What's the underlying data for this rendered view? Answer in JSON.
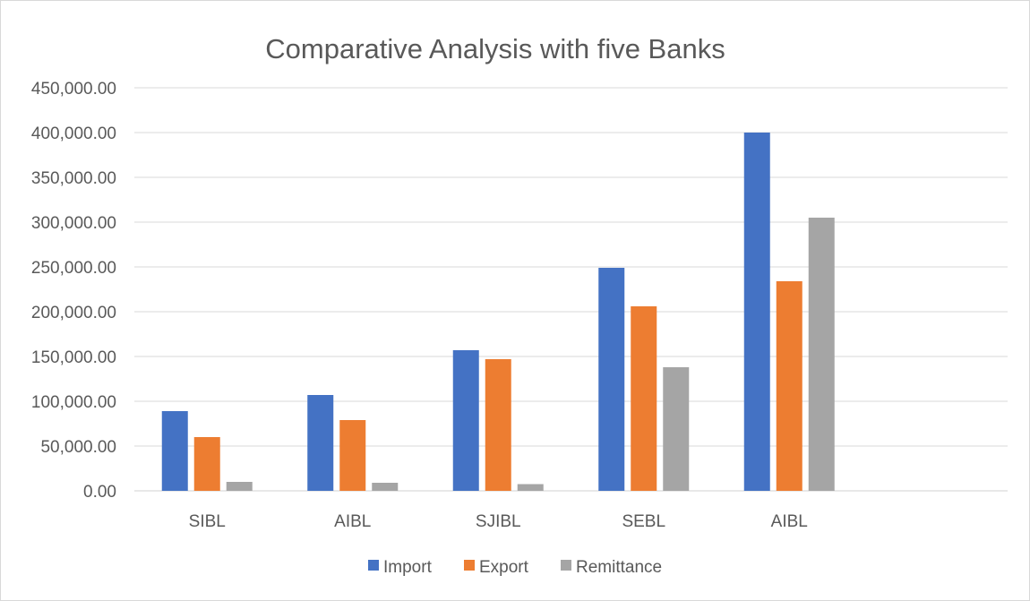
{
  "chart_data": {
    "type": "bar",
    "title": "Comparative Analysis with five Banks",
    "xlabel": "",
    "ylabel": "",
    "categories": [
      "SIBL",
      "AIBL",
      "SJIBL",
      "SEBL",
      "AIBL"
    ],
    "series": [
      {
        "name": "Import",
        "color": "#4472c4",
        "values": [
          89000,
          107000,
          157000,
          249000,
          400000
        ]
      },
      {
        "name": "Export",
        "color": "#ed7d31",
        "values": [
          60000,
          79000,
          147000,
          206000,
          234000
        ]
      },
      {
        "name": "Remittance",
        "color": "#a5a5a5",
        "values": [
          10000,
          9000,
          7500,
          138000,
          305000
        ]
      }
    ],
    "ylim": [
      0,
      450000
    ],
    "yticks": [
      0,
      50000,
      100000,
      150000,
      200000,
      250000,
      300000,
      350000,
      400000,
      450000
    ],
    "ytick_labels": [
      "0.00",
      "50,000.00",
      "100,000.00",
      "150,000.00",
      "200,000.00",
      "250,000.00",
      "300,000.00",
      "350,000.00",
      "400,000.00",
      "450,000.00"
    ],
    "empty_trailing_categories": 1,
    "grid": true,
    "legend_position": "bottom"
  }
}
